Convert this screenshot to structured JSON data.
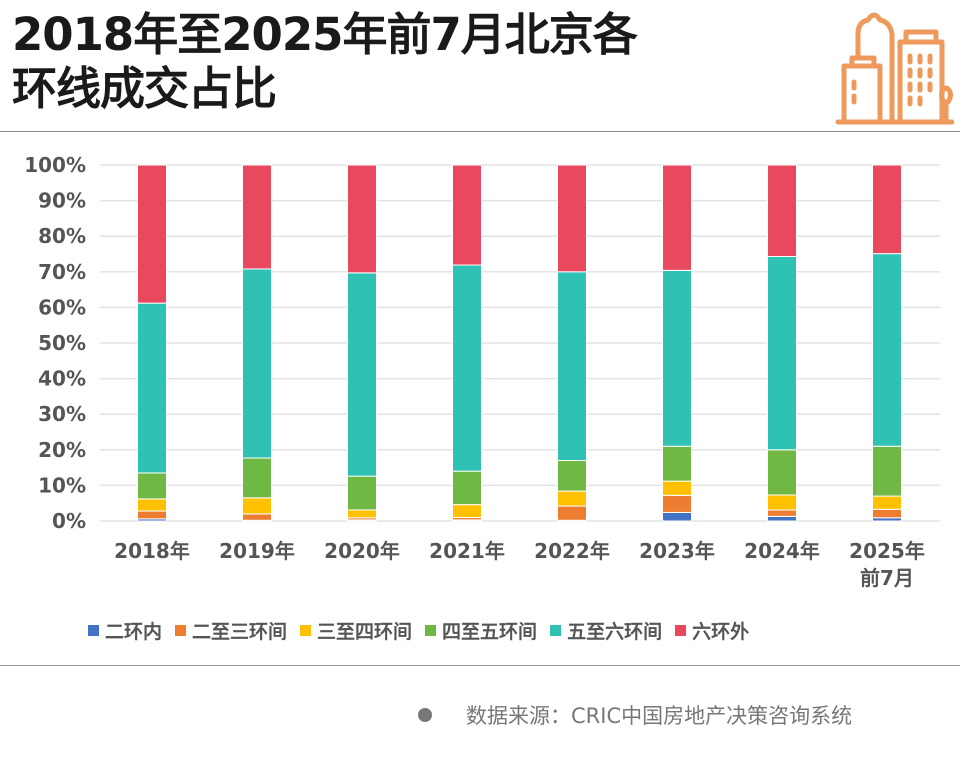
{
  "title_lines": [
    "2018年至2025年前7月北京各",
    "环线成交占比"
  ],
  "logo_icon": "city-buildings-icon",
  "accent_color": "#EE9A5C",
  "source": {
    "bullet_icon": "bullet-dot-icon",
    "text": "数据来源：CRIC中国房地产决策咨询系统"
  },
  "chart_data": {
    "type": "bar",
    "stacked": true,
    "percent": true,
    "title": "2018年至2025年前7月北京各环线成交占比",
    "xlabel": "",
    "ylabel": "",
    "ylim": [
      0,
      100
    ],
    "yticks": [
      "0%",
      "10%",
      "20%",
      "30%",
      "40%",
      "50%",
      "60%",
      "70%",
      "80%",
      "90%",
      "100%"
    ],
    "grid": true,
    "legend_position": "bottom",
    "categories": [
      [
        "2018年"
      ],
      [
        "2019年"
      ],
      [
        "2020年"
      ],
      [
        "2021年"
      ],
      [
        "2022年"
      ],
      [
        "2023年"
      ],
      [
        "2024年"
      ],
      [
        "2025年",
        "前7月"
      ]
    ],
    "series": [
      {
        "name": "二环内",
        "color": "#4472C4",
        "values": [
          0.6,
          0.2,
          0.3,
          0.3,
          0.2,
          2.4,
          1.3,
          0.9
        ]
      },
      {
        "name": "二至三环间",
        "color": "#ED7D31",
        "values": [
          2.2,
          1.8,
          0.6,
          0.7,
          4.0,
          4.8,
          1.8,
          2.4
        ]
      },
      {
        "name": "三至四环间",
        "color": "#FFC000",
        "values": [
          3.4,
          4.5,
          2.2,
          3.6,
          4.2,
          4.0,
          4.2,
          3.7
        ]
      },
      {
        "name": "四至五环间",
        "color": "#70B844",
        "values": [
          7.3,
          11.2,
          9.5,
          9.4,
          8.6,
          9.8,
          12.7,
          14.0
        ]
      },
      {
        "name": "五至六环间",
        "color": "#2EC1B4",
        "values": [
          47.7,
          53.1,
          57.1,
          57.9,
          53.0,
          49.4,
          54.3,
          54.1
        ]
      },
      {
        "name": "六环外",
        "color": "#E8495E",
        "values": [
          38.8,
          29.2,
          30.3,
          28.1,
          30.0,
          29.6,
          25.7,
          24.9
        ]
      }
    ]
  }
}
